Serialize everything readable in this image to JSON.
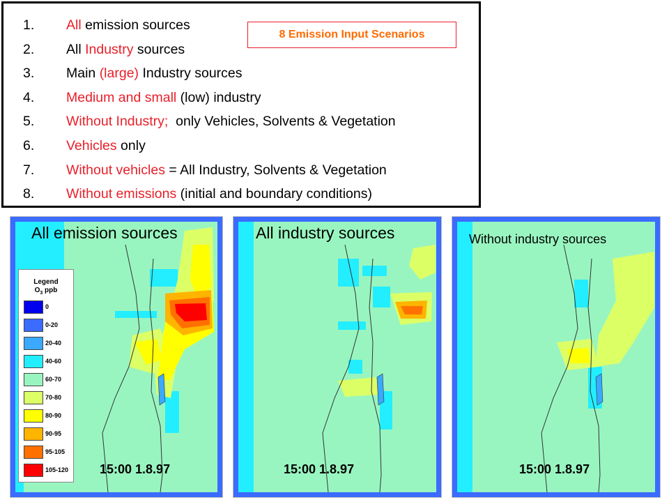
{
  "scenario_box_title": "8 Emission Input Scenarios",
  "scenarios": [
    {
      "num": "1.",
      "parts": [
        {
          "t": "All",
          "red": true
        },
        {
          "t": " emission sources",
          "red": false
        }
      ]
    },
    {
      "num": "2.",
      "parts": [
        {
          "t": "All ",
          "red": false
        },
        {
          "t": "Industry",
          "red": true
        },
        {
          "t": " sources",
          "red": false
        }
      ]
    },
    {
      "num": "3.",
      "parts": [
        {
          "t": "Main ",
          "red": false
        },
        {
          "t": "(large)",
          "red": true
        },
        {
          "t": " Industry sources",
          "red": false
        }
      ]
    },
    {
      "num": "4.",
      "parts": [
        {
          "t": "Medium and small",
          "red": true
        },
        {
          "t": " (low) industry",
          "red": false
        }
      ]
    },
    {
      "num": "5.",
      "parts": [
        {
          "t": "Without Industry;",
          "red": true
        },
        {
          "t": "  only Vehicles, Solvents & Vegetation",
          "red": false
        }
      ]
    },
    {
      "num": "6.",
      "parts": [
        {
          "t": "Vehicles",
          "red": true
        },
        {
          "t": " only",
          "red": false
        }
      ]
    },
    {
      "num": "7.",
      "parts": [
        {
          "t": "Without vehicles",
          "red": true
        },
        {
          "t": " = All Industry, Solvents & Vegetation",
          "red": false
        }
      ]
    },
    {
      "num": "8.",
      "parts": [
        {
          "t": "Without emissions",
          "red": true
        },
        {
          "t": " (initial and boundary conditions)",
          "red": false
        }
      ]
    }
  ],
  "maps": [
    {
      "title": "All emission sources",
      "timestamp": "15:00 1.8.97"
    },
    {
      "title": "All industry sources",
      "timestamp": "15:00 1.8.97"
    },
    {
      "title": "Without industry sources",
      "timestamp": "15:00 1.8.97"
    }
  ],
  "legend": {
    "title": "Legend",
    "unit_prefix": "O",
    "unit_sub": "3",
    "unit_suffix": " ppb",
    "classes": [
      {
        "label": "0",
        "color": "#0000ee"
      },
      {
        "label": "0-20",
        "color": "#3b6bff"
      },
      {
        "label": "20-40",
        "color": "#3aa9ff"
      },
      {
        "label": "40-60",
        "color": "#22eeff"
      },
      {
        "label": "60-70",
        "color": "#99f5c0"
      },
      {
        "label": "70-80",
        "color": "#ddff66"
      },
      {
        "label": "80-90",
        "color": "#ffff00"
      },
      {
        "label": "90-95",
        "color": "#ffb400"
      },
      {
        "label": "95-105",
        "color": "#ff7000"
      },
      {
        "label": "105-120",
        "color": "#ff0000"
      }
    ]
  },
  "colors": {
    "background_green": "#99f5c0",
    "frame_blue": "#3b6bff",
    "sea_cyan": "#22eeff",
    "highlight_red": "#e8202a",
    "title_orange": "#ff6a00"
  }
}
